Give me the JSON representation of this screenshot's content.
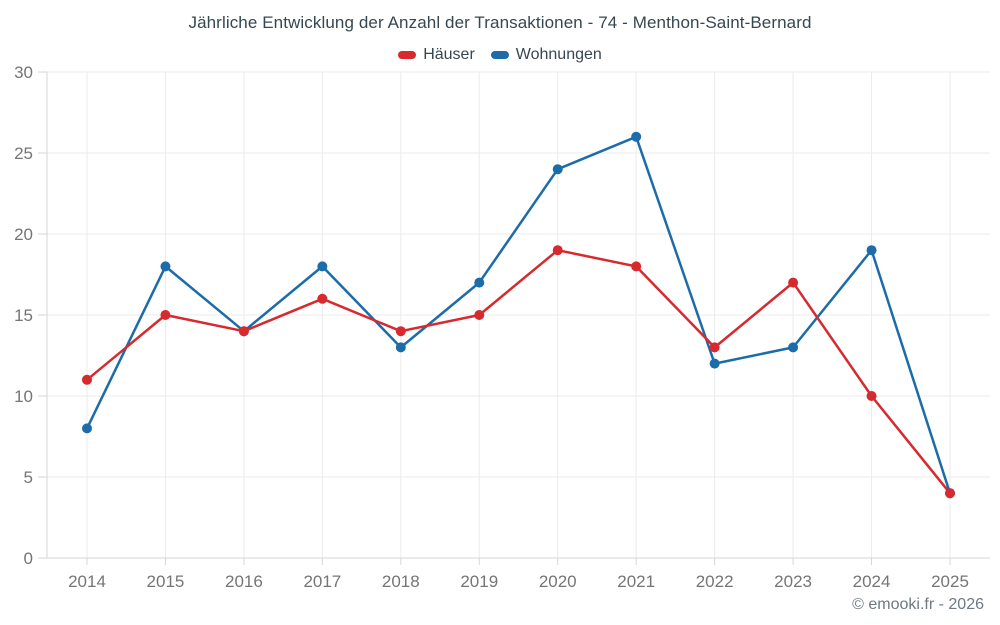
{
  "title": "Jährliche Entwicklung der Anzahl der Transaktionen - 74 - Menthon-Saint-Bernard",
  "footer": "© emooki.fr - 2026",
  "colors": {
    "hauser_red": "#d62a2e",
    "wohnungen_blue": "#1b6ca8",
    "grid": "#ebebeb",
    "axis": "#d6d6d6",
    "tick_label": "#757575",
    "title_text": "#37474f"
  },
  "chart_data": {
    "type": "line",
    "title": "Jährliche Entwicklung der Anzahl der Transaktionen - 74 - Menthon-Saint-Bernard",
    "x": [
      2014,
      2015,
      2016,
      2017,
      2018,
      2019,
      2020,
      2021,
      2022,
      2023,
      2024,
      2025
    ],
    "series": [
      {
        "name": "Häuser",
        "color": "#d62a2e",
        "values": [
          11,
          15,
          14,
          16,
          14,
          15,
          19,
          18,
          13,
          17,
          10,
          4
        ]
      },
      {
        "name": "Wohnungen",
        "color": "#1b6ca8",
        "values": [
          8,
          18,
          14,
          18,
          13,
          17,
          24,
          26,
          12,
          13,
          19,
          4
        ]
      }
    ],
    "xlabel": "",
    "ylabel": "",
    "ylim": [
      0,
      30
    ],
    "yticks": [
      0,
      5,
      10,
      15,
      20,
      25,
      30
    ],
    "grid": true,
    "legend_position": "top"
  }
}
